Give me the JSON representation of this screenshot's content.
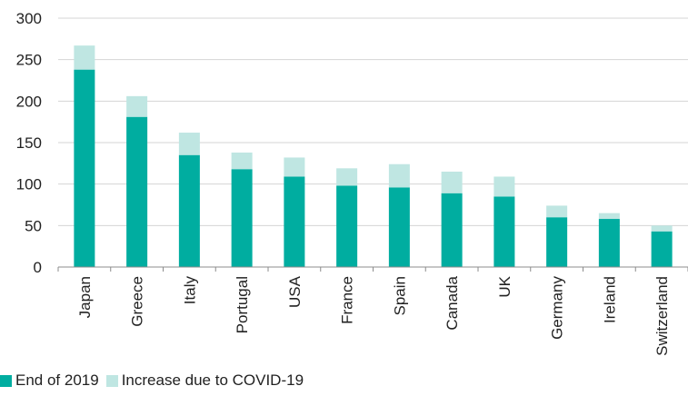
{
  "chart_data": {
    "type": "bar",
    "stacked": true,
    "title": "",
    "xlabel": "",
    "ylabel": "",
    "ylim": [
      0,
      300
    ],
    "yticks": [
      0,
      50,
      100,
      150,
      200,
      250,
      300
    ],
    "grid": true,
    "legend_position": "bottom-left",
    "categories": [
      "Japan",
      "Greece",
      "Italy",
      "Portugal",
      "USA",
      "France",
      "Spain",
      "Canada",
      "UK",
      "Germany",
      "Ireland",
      "Switzerland"
    ],
    "series": [
      {
        "name": "End of 2019",
        "color": "#00ada0",
        "values": [
          238,
          181,
          135,
          118,
          109,
          98,
          96,
          89,
          85,
          60,
          58,
          43
        ]
      },
      {
        "name": "Increase due to COVID-19",
        "color": "#bfe6e2",
        "values": [
          29,
          25,
          27,
          20,
          23,
          21,
          28,
          26,
          24,
          14,
          7,
          7
        ]
      }
    ]
  }
}
